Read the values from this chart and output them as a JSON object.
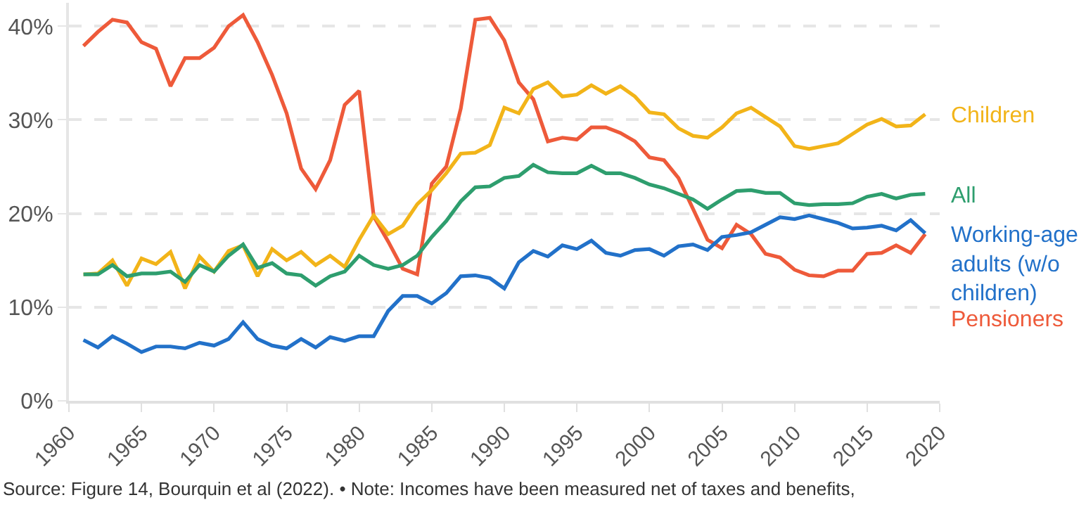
{
  "chart_data": {
    "type": "line",
    "x": [
      1961,
      1962,
      1963,
      1964,
      1965,
      1966,
      1967,
      1968,
      1969,
      1970,
      1971,
      1972,
      1973,
      1974,
      1975,
      1976,
      1977,
      1978,
      1979,
      1980,
      1981,
      1982,
      1983,
      1984,
      1985,
      1986,
      1987,
      1988,
      1989,
      1990,
      1991,
      1992,
      1993,
      1994,
      1995,
      1996,
      1997,
      1998,
      1999,
      2000,
      2001,
      2002,
      2003,
      2004,
      2005,
      2006,
      2007,
      2008,
      2009,
      2010,
      2011,
      2012,
      2013,
      2014,
      2015,
      2016,
      2017,
      2018,
      2019
    ],
    "series": [
      {
        "name": "Pensioners",
        "color": "#ee5a3a",
        "values": [
          37.9,
          39.4,
          40.7,
          40.4,
          38.3,
          37.6,
          33.6,
          36.6,
          36.6,
          37.7,
          40.0,
          41.2,
          38.3,
          34.8,
          30.7,
          24.8,
          22.6,
          25.7,
          31.6,
          33.1,
          19.7,
          17.0,
          14.1,
          13.5,
          23.2,
          25.0,
          31.2,
          40.7,
          40.9,
          38.5,
          34.0,
          32.2,
          27.7,
          28.1,
          27.9,
          29.2,
          29.2,
          28.6,
          27.7,
          26.0,
          25.7,
          23.8,
          20.5,
          17.2,
          16.3,
          18.8,
          17.8,
          15.7,
          15.3,
          14.0,
          13.4,
          13.3,
          13.9,
          13.9,
          15.7,
          15.8,
          16.6,
          15.8,
          17.8
        ]
      },
      {
        "name": "Children",
        "color": "#f2b419",
        "values": [
          13.5,
          13.6,
          15.0,
          12.3,
          15.2,
          14.6,
          15.9,
          12.0,
          15.4,
          13.8,
          16.0,
          16.6,
          13.3,
          16.2,
          15.0,
          15.9,
          14.5,
          15.5,
          14.3,
          17.2,
          19.8,
          17.8,
          18.7,
          21.0,
          22.5,
          24.3,
          26.4,
          26.5,
          27.3,
          31.3,
          30.7,
          33.3,
          34.0,
          32.5,
          32.7,
          33.7,
          32.8,
          33.6,
          32.5,
          30.8,
          30.6,
          29.1,
          28.3,
          28.1,
          29.2,
          30.7,
          31.3,
          30.3,
          29.3,
          27.2,
          26.9,
          27.2,
          27.5,
          28.5,
          29.5,
          30.1,
          29.3,
          29.4,
          30.6
        ]
      },
      {
        "name": "All",
        "color": "#2e9e6e",
        "values": [
          13.5,
          13.5,
          14.5,
          13.3,
          13.6,
          13.6,
          13.8,
          12.7,
          14.5,
          13.8,
          15.5,
          16.7,
          14.2,
          14.7,
          13.6,
          13.4,
          12.3,
          13.3,
          13.8,
          15.5,
          14.5,
          14.1,
          14.5,
          15.5,
          17.5,
          19.2,
          21.3,
          22.8,
          22.9,
          23.8,
          24.0,
          25.2,
          24.4,
          24.3,
          24.3,
          25.1,
          24.3,
          24.3,
          23.8,
          23.1,
          22.7,
          22.1,
          21.5,
          20.5,
          21.5,
          22.4,
          22.5,
          22.2,
          22.2,
          21.1,
          20.9,
          21.0,
          21.0,
          21.1,
          21.8,
          22.1,
          21.6,
          22.0,
          22.1
        ]
      },
      {
        "name": "Working-age\nadults (w/o\nchildren)",
        "color": "#2271c9",
        "values": [
          6.5,
          5.7,
          6.9,
          6.1,
          5.2,
          5.8,
          5.8,
          5.6,
          6.2,
          5.9,
          6.6,
          8.4,
          6.6,
          5.9,
          5.6,
          6.6,
          5.7,
          6.8,
          6.4,
          6.9,
          6.9,
          9.6,
          11.2,
          11.2,
          10.4,
          11.5,
          13.3,
          13.4,
          13.1,
          12.0,
          14.8,
          16.0,
          15.4,
          16.6,
          16.2,
          17.1,
          15.8,
          15.5,
          16.1,
          16.2,
          15.5,
          16.5,
          16.7,
          16.1,
          17.5,
          17.7,
          18.0,
          18.8,
          19.6,
          19.4,
          19.8,
          19.4,
          19.0,
          18.4,
          18.5,
          18.7,
          18.2,
          19.3,
          17.9
        ]
      }
    ],
    "xlim": [
      1960,
      2020
    ],
    "xticks": [
      1960,
      1965,
      1970,
      1975,
      1980,
      1985,
      1990,
      1995,
      2000,
      2005,
      2010,
      2015,
      2020
    ],
    "ylim": [
      0,
      42.5
    ],
    "yticks": [
      {
        "value": 0,
        "label": "0%"
      },
      {
        "value": 10,
        "label": "10%"
      },
      {
        "value": 20,
        "label": "20%"
      },
      {
        "value": 30,
        "label": "30%"
      },
      {
        "value": 40,
        "label": "40%"
      }
    ],
    "grid": "y",
    "legend": false,
    "line_style": "solid",
    "marker": "none",
    "annotations": [
      "Source: Figure 14, Bourquin et al (2022). • Note: Incomes have been measured net of taxes and benefits,"
    ]
  }
}
